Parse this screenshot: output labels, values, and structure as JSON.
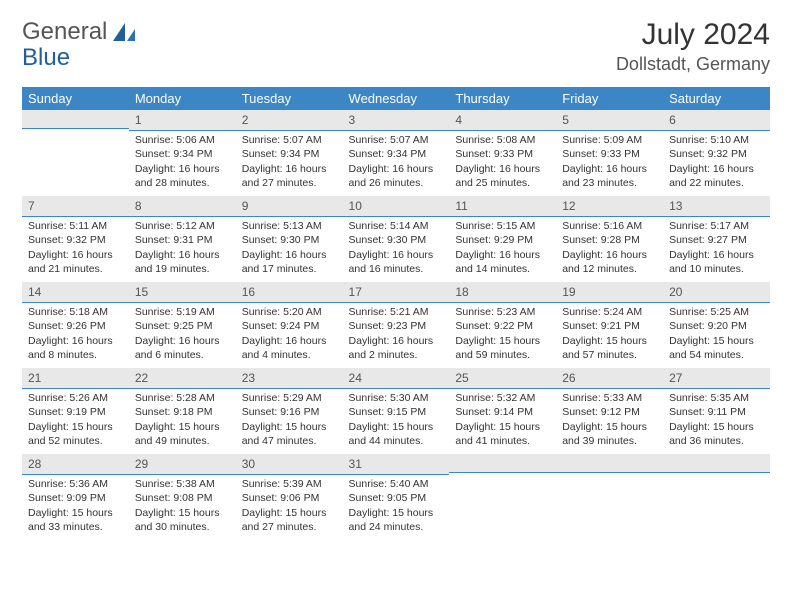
{
  "logo": {
    "word1": "General",
    "word2": "Blue"
  },
  "title": {
    "month": "July 2024",
    "location": "Dollstadt, Germany"
  },
  "style": {
    "header_bg": "#3d86c6",
    "header_text": "#ffffff",
    "daynum_bg": "#e8e8e8",
    "daynum_border": "#3d86c6",
    "text_color": "#333333",
    "logo_blue": "#1f5f9e",
    "body_fontsize": 10.5,
    "header_fontsize": 13,
    "title_fontsize": 30,
    "location_fontsize": 18
  },
  "weekdays": [
    "Sunday",
    "Monday",
    "Tuesday",
    "Wednesday",
    "Thursday",
    "Friday",
    "Saturday"
  ],
  "weeks": [
    [
      {
        "n": "",
        "sr": "",
        "ss": "",
        "dl": ""
      },
      {
        "n": "1",
        "sr": "5:06 AM",
        "ss": "9:34 PM",
        "dl": "16 hours and 28 minutes."
      },
      {
        "n": "2",
        "sr": "5:07 AM",
        "ss": "9:34 PM",
        "dl": "16 hours and 27 minutes."
      },
      {
        "n": "3",
        "sr": "5:07 AM",
        "ss": "9:34 PM",
        "dl": "16 hours and 26 minutes."
      },
      {
        "n": "4",
        "sr": "5:08 AM",
        "ss": "9:33 PM",
        "dl": "16 hours and 25 minutes."
      },
      {
        "n": "5",
        "sr": "5:09 AM",
        "ss": "9:33 PM",
        "dl": "16 hours and 23 minutes."
      },
      {
        "n": "6",
        "sr": "5:10 AM",
        "ss": "9:32 PM",
        "dl": "16 hours and 22 minutes."
      }
    ],
    [
      {
        "n": "7",
        "sr": "5:11 AM",
        "ss": "9:32 PM",
        "dl": "16 hours and 21 minutes."
      },
      {
        "n": "8",
        "sr": "5:12 AM",
        "ss": "9:31 PM",
        "dl": "16 hours and 19 minutes."
      },
      {
        "n": "9",
        "sr": "5:13 AM",
        "ss": "9:30 PM",
        "dl": "16 hours and 17 minutes."
      },
      {
        "n": "10",
        "sr": "5:14 AM",
        "ss": "9:30 PM",
        "dl": "16 hours and 16 minutes."
      },
      {
        "n": "11",
        "sr": "5:15 AM",
        "ss": "9:29 PM",
        "dl": "16 hours and 14 minutes."
      },
      {
        "n": "12",
        "sr": "5:16 AM",
        "ss": "9:28 PM",
        "dl": "16 hours and 12 minutes."
      },
      {
        "n": "13",
        "sr": "5:17 AM",
        "ss": "9:27 PM",
        "dl": "16 hours and 10 minutes."
      }
    ],
    [
      {
        "n": "14",
        "sr": "5:18 AM",
        "ss": "9:26 PM",
        "dl": "16 hours and 8 minutes."
      },
      {
        "n": "15",
        "sr": "5:19 AM",
        "ss": "9:25 PM",
        "dl": "16 hours and 6 minutes."
      },
      {
        "n": "16",
        "sr": "5:20 AM",
        "ss": "9:24 PM",
        "dl": "16 hours and 4 minutes."
      },
      {
        "n": "17",
        "sr": "5:21 AM",
        "ss": "9:23 PM",
        "dl": "16 hours and 2 minutes."
      },
      {
        "n": "18",
        "sr": "5:23 AM",
        "ss": "9:22 PM",
        "dl": "15 hours and 59 minutes."
      },
      {
        "n": "19",
        "sr": "5:24 AM",
        "ss": "9:21 PM",
        "dl": "15 hours and 57 minutes."
      },
      {
        "n": "20",
        "sr": "5:25 AM",
        "ss": "9:20 PM",
        "dl": "15 hours and 54 minutes."
      }
    ],
    [
      {
        "n": "21",
        "sr": "5:26 AM",
        "ss": "9:19 PM",
        "dl": "15 hours and 52 minutes."
      },
      {
        "n": "22",
        "sr": "5:28 AM",
        "ss": "9:18 PM",
        "dl": "15 hours and 49 minutes."
      },
      {
        "n": "23",
        "sr": "5:29 AM",
        "ss": "9:16 PM",
        "dl": "15 hours and 47 minutes."
      },
      {
        "n": "24",
        "sr": "5:30 AM",
        "ss": "9:15 PM",
        "dl": "15 hours and 44 minutes."
      },
      {
        "n": "25",
        "sr": "5:32 AM",
        "ss": "9:14 PM",
        "dl": "15 hours and 41 minutes."
      },
      {
        "n": "26",
        "sr": "5:33 AM",
        "ss": "9:12 PM",
        "dl": "15 hours and 39 minutes."
      },
      {
        "n": "27",
        "sr": "5:35 AM",
        "ss": "9:11 PM",
        "dl": "15 hours and 36 minutes."
      }
    ],
    [
      {
        "n": "28",
        "sr": "5:36 AM",
        "ss": "9:09 PM",
        "dl": "15 hours and 33 minutes."
      },
      {
        "n": "29",
        "sr": "5:38 AM",
        "ss": "9:08 PM",
        "dl": "15 hours and 30 minutes."
      },
      {
        "n": "30",
        "sr": "5:39 AM",
        "ss": "9:06 PM",
        "dl": "15 hours and 27 minutes."
      },
      {
        "n": "31",
        "sr": "5:40 AM",
        "ss": "9:05 PM",
        "dl": "15 hours and 24 minutes."
      },
      {
        "n": "",
        "sr": "",
        "ss": "",
        "dl": ""
      },
      {
        "n": "",
        "sr": "",
        "ss": "",
        "dl": ""
      },
      {
        "n": "",
        "sr": "",
        "ss": "",
        "dl": ""
      }
    ]
  ],
  "labels": {
    "sunrise": "Sunrise: ",
    "sunset": "Sunset: ",
    "daylight": "Daylight: "
  }
}
